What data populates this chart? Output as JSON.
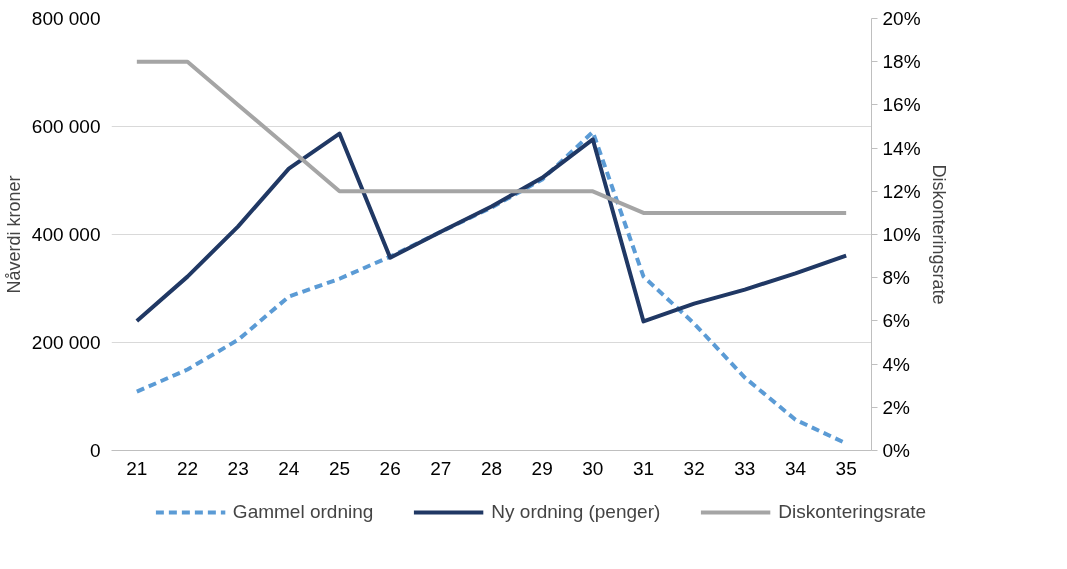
{
  "chart_data": {
    "type": "line",
    "categories": [
      "21",
      "22",
      "23",
      "24",
      "25",
      "26",
      "27",
      "28",
      "29",
      "30",
      "31",
      "32",
      "33",
      "34",
      "35"
    ],
    "ylabel": "Nåverdi kroner",
    "y2label": "Diskonteringsrate",
    "ylim": [
      0,
      800000
    ],
    "yticks": [
      {
        "value": 0,
        "label": "0"
      },
      {
        "value": 200000,
        "label": "200 000"
      },
      {
        "value": 400000,
        "label": "400 000"
      },
      {
        "value": 600000,
        "label": "600 000"
      },
      {
        "value": 800000,
        "label": "800 000"
      }
    ],
    "y2lim": [
      0,
      20
    ],
    "y2ticks": [
      {
        "value": 0,
        "label": "0%"
      },
      {
        "value": 2,
        "label": "2%"
      },
      {
        "value": 4,
        "label": "4%"
      },
      {
        "value": 6,
        "label": "6%"
      },
      {
        "value": 8,
        "label": "8%"
      },
      {
        "value": 10,
        "label": "10%"
      },
      {
        "value": 12,
        "label": "12%"
      },
      {
        "value": 14,
        "label": "14%"
      },
      {
        "value": 16,
        "label": "16%"
      },
      {
        "value": 18,
        "label": "18%"
      },
      {
        "value": 20,
        "label": "20%"
      }
    ],
    "grid": "y",
    "legend": "bottom",
    "marker": "none",
    "series": [
      {
        "name": "Gammel ordning",
        "color": "#5b9bd5",
        "line_style": "dashed",
        "values": [
          109000,
          150000,
          205000,
          285000,
          318000,
          359000,
          405000,
          450000,
          502000,
          590000,
          322000,
          235000,
          135000,
          57000,
          13000
        ]
      },
      {
        "name": "Ny ordning (penger)",
        "color": "#203864",
        "line_style": "solid",
        "values": [
          240000,
          322000,
          415000,
          522000,
          587000,
          357000,
          405000,
          452000,
          505000,
          576000,
          239000,
          272000,
          298000,
          328000,
          361000
        ]
      },
      {
        "name": "Diskonteringsrate",
        "color": "#a5a5a5",
        "line_style": "solid",
        "axis": "y2",
        "values": [
          18,
          18,
          16,
          14,
          12,
          12,
          12,
          12,
          12,
          12,
          11,
          11,
          11,
          11,
          11
        ]
      }
    ]
  }
}
